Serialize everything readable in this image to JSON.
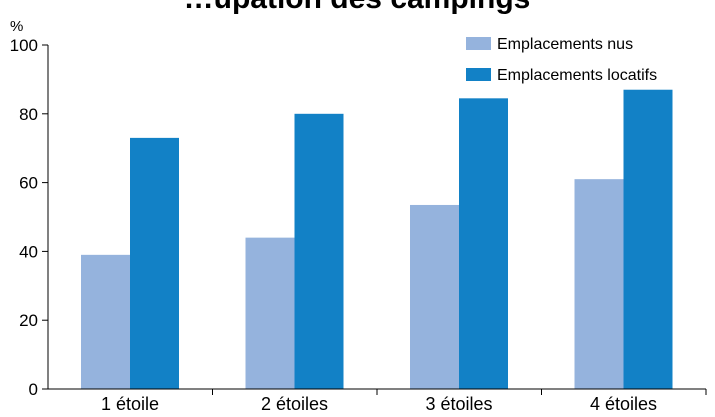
{
  "chart_data": {
    "type": "bar",
    "title": "…upation des campings",
    "ylabel": "%",
    "xlabel": "",
    "ylim": [
      0,
      100
    ],
    "yticks": [
      0,
      20,
      40,
      60,
      80,
      100
    ],
    "grid": false,
    "legend_position": "top-right",
    "categories": [
      "1 étoile",
      "2 étoiles",
      "3 étoiles",
      "4 étoiles"
    ],
    "series": [
      {
        "name": "Emplacements nus",
        "color": "#95b3dd",
        "values": [
          39,
          44,
          53.5,
          61
        ]
      },
      {
        "name": "Emplacements locatifs",
        "color": "#1281c6",
        "values": [
          73,
          80,
          84.5,
          87
        ]
      }
    ]
  }
}
